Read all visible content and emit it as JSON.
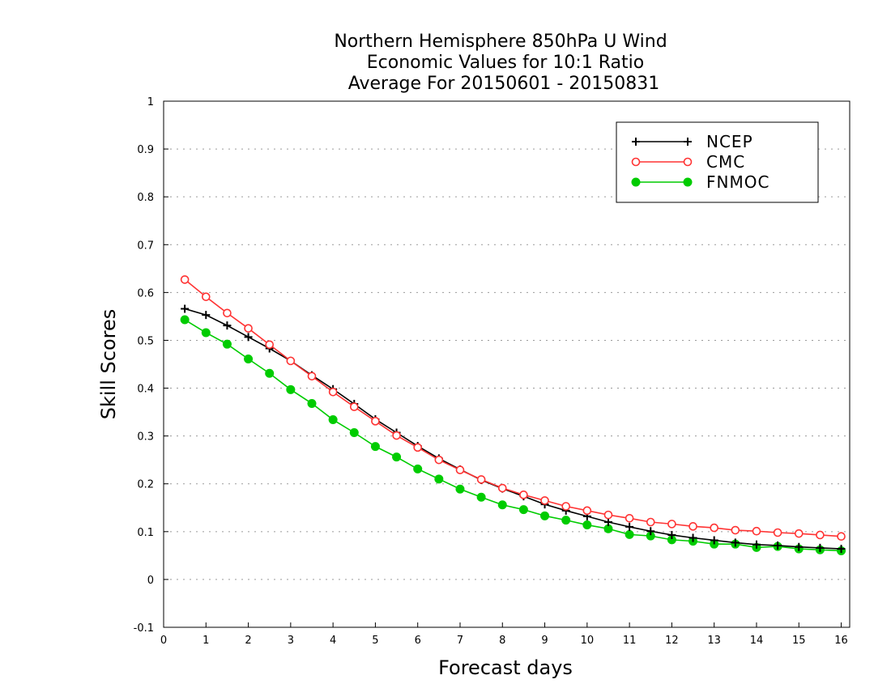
{
  "chart_data": {
    "type": "line",
    "title": [
      "Northern Hemisphere 850hPa U Wind",
      "Economic Values for 10:1 Ratio",
      "Average For 20150601 - 20150831"
    ],
    "xlabel": "Forecast days",
    "ylabel": "Skill Scores",
    "xlim": [
      0,
      16.2
    ],
    "ylim": [
      -0.1,
      1
    ],
    "xticks": [
      0,
      1,
      2,
      3,
      4,
      5,
      6,
      7,
      8,
      9,
      10,
      11,
      12,
      13,
      14,
      15,
      16
    ],
    "yticks": [
      -0.1,
      0,
      0.1,
      0.2,
      0.3,
      0.4,
      0.5,
      0.6,
      0.7,
      0.8,
      0.9,
      1
    ],
    "ytick_labels": [
      "-0.1",
      "0",
      "0.1",
      "0.2",
      "0.3",
      "0.4",
      "0.5",
      "0.6",
      "0.7",
      "0.8",
      "0.9",
      "1"
    ],
    "grid": true,
    "legend_position": "top-right",
    "x": [
      0.5,
      1,
      1.5,
      2,
      2.5,
      3,
      3.5,
      4,
      4.5,
      5,
      5.5,
      6,
      6.5,
      7,
      7.5,
      8,
      8.5,
      9,
      9.5,
      10,
      10.5,
      11,
      11.5,
      12,
      12.5,
      13,
      13.5,
      14,
      14.5,
      15,
      15.5,
      16
    ],
    "series": [
      {
        "name": "NCEP",
        "color": "#000000",
        "marker": "plus",
        "values": [
          0.566,
          0.553,
          0.531,
          0.507,
          0.483,
          0.457,
          0.427,
          0.398,
          0.367,
          0.335,
          0.307,
          0.279,
          0.253,
          0.23,
          0.208,
          0.19,
          0.174,
          0.157,
          0.144,
          0.132,
          0.12,
          0.11,
          0.101,
          0.093,
          0.087,
          0.082,
          0.077,
          0.073,
          0.071,
          0.068,
          0.066,
          0.064
        ]
      },
      {
        "name": "CMC",
        "color": "#ff3333",
        "marker": "open-circle",
        "values": [
          0.627,
          0.591,
          0.557,
          0.525,
          0.491,
          0.457,
          0.425,
          0.392,
          0.361,
          0.331,
          0.301,
          0.276,
          0.25,
          0.229,
          0.209,
          0.191,
          0.177,
          0.165,
          0.153,
          0.144,
          0.135,
          0.128,
          0.12,
          0.116,
          0.111,
          0.108,
          0.103,
          0.101,
          0.098,
          0.096,
          0.093,
          0.09
        ]
      },
      {
        "name": "FNMOC",
        "color": "#00cc00",
        "marker": "filled-circle",
        "values": [
          0.543,
          0.516,
          0.492,
          0.461,
          0.431,
          0.397,
          0.368,
          0.334,
          0.307,
          0.278,
          0.256,
          0.231,
          0.21,
          0.189,
          0.172,
          0.156,
          0.146,
          0.133,
          0.124,
          0.114,
          0.106,
          0.094,
          0.091,
          0.083,
          0.08,
          0.074,
          0.074,
          0.067,
          0.069,
          0.064,
          0.062,
          0.06
        ]
      }
    ]
  }
}
